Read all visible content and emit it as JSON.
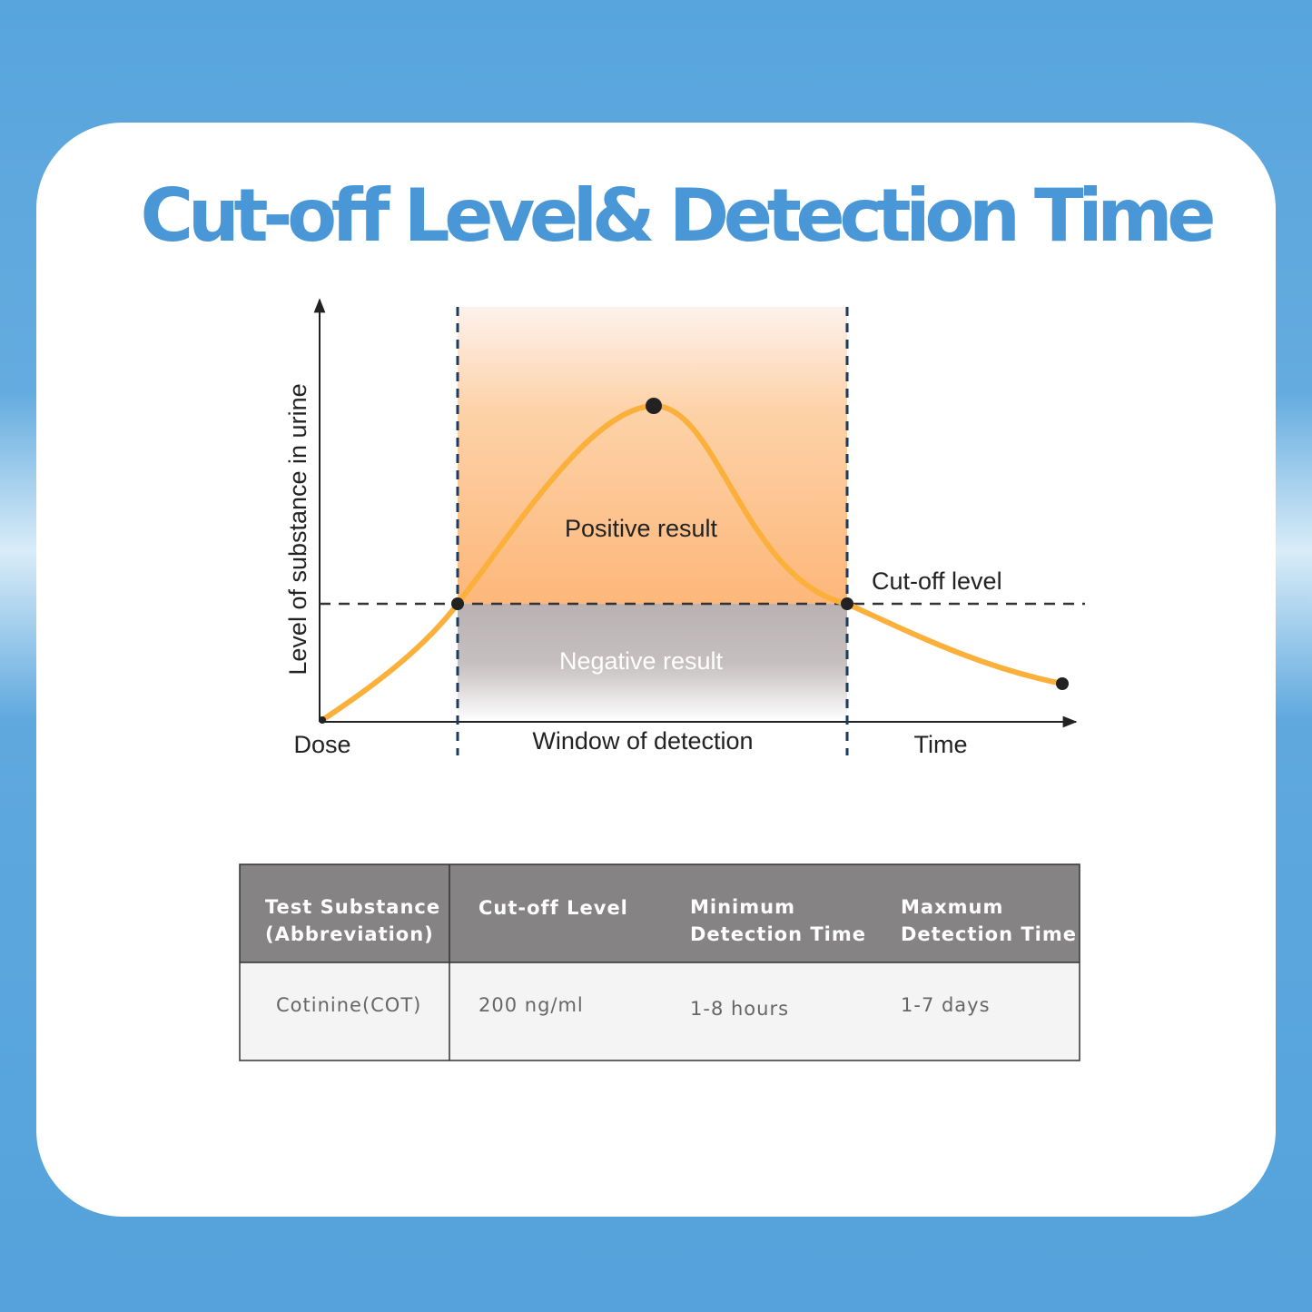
{
  "header": {
    "title": "Cut-off Level& Detection Time"
  },
  "diagram": {
    "y_axis_label": "Level of substance in urine",
    "x_start_label": "Dose",
    "x_end_label": "Time",
    "window_label": "Window of detection",
    "cutoff_label": "Cut-off level",
    "positive_label": "Positive result",
    "negative_label": "Negative result"
  },
  "table": {
    "headers": [
      [
        "Test Substance",
        "(Abbreviation)"
      ],
      [
        "Cut-off Level"
      ],
      [
        "Minimum",
        "Detection Time"
      ],
      [
        "Maxmum",
        "Detection Time"
      ]
    ],
    "rows": [
      [
        "Cotinine(COT)",
        "200 ng/ml",
        "1-8 hours",
        "1-7 days"
      ]
    ]
  }
}
